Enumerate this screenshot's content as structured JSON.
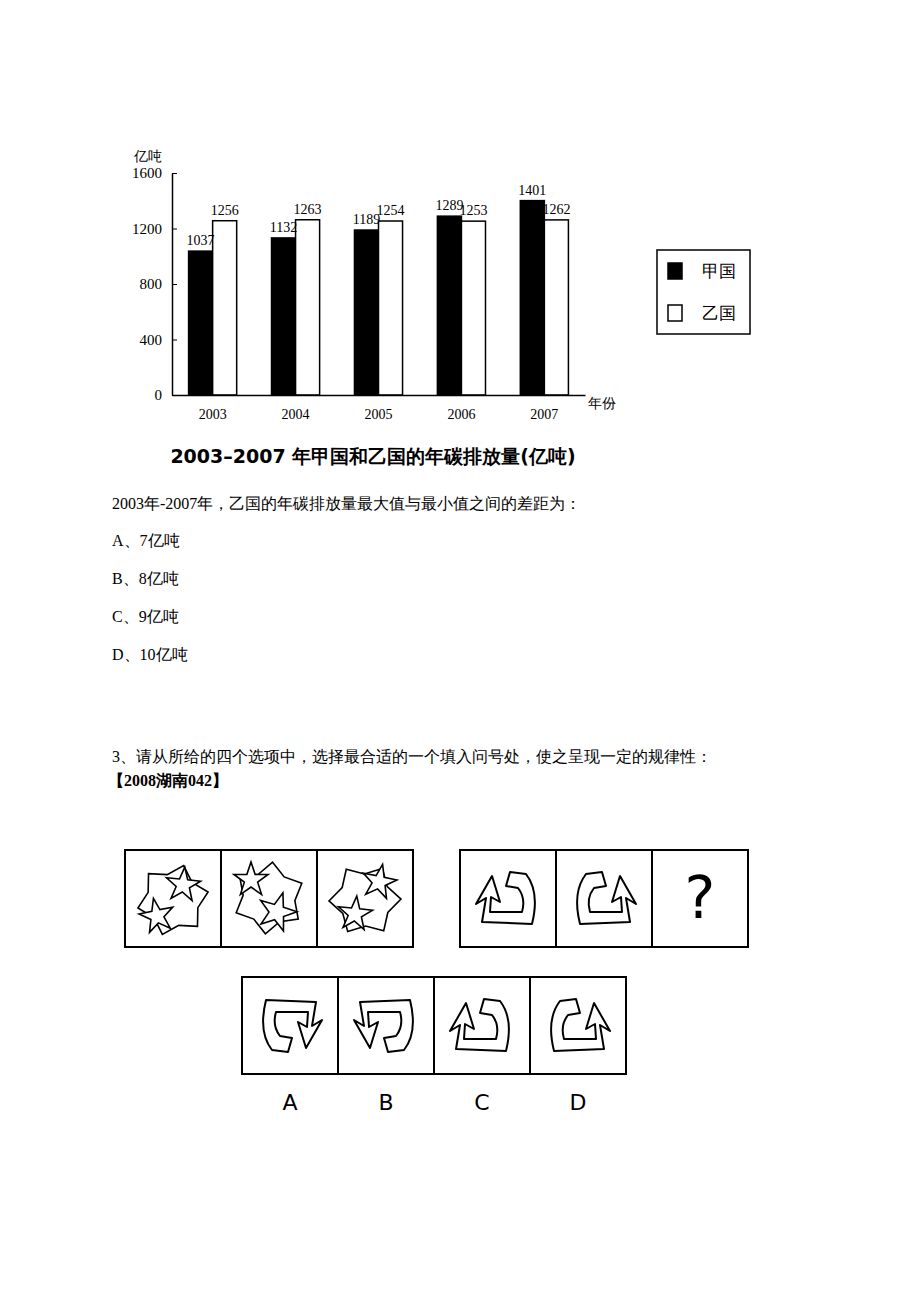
{
  "chart_data": {
    "type": "bar",
    "title": "2003–2007 年甲国和乙国的年碳排放量(亿吨)",
    "y_label": "亿吨",
    "x_label": "年份",
    "categories": [
      "2003",
      "2004",
      "2005",
      "2006",
      "2007"
    ],
    "series": [
      {
        "name": "甲国",
        "color": "#000000",
        "values": [
          1037,
          1132,
          1189,
          1289,
          1401
        ]
      },
      {
        "name": "乙国",
        "color": "#ffffff",
        "values": [
          1256,
          1263,
          1254,
          1253,
          1262
        ]
      }
    ],
    "ylim": [
      0,
      1600
    ],
    "yticks": [
      0,
      400,
      800,
      1200,
      1600
    ],
    "data_labels": true,
    "legend": "right"
  },
  "question_2": {
    "stem": "2003年-2007年，乙国的年碳排放量最大值与最小值之间的差距为：",
    "options": [
      "A、7亿吨",
      "B、8亿吨",
      "C、9亿吨",
      "D、10亿吨"
    ]
  },
  "question_3": {
    "stem": "3、请从所给的四个选项中，选择最合适的一个填入问号处，使之呈现一定的规律性：",
    "source": "【2008湖南042】",
    "question_mark": "?",
    "option_labels": [
      "A",
      "B",
      "C",
      "D"
    ]
  }
}
